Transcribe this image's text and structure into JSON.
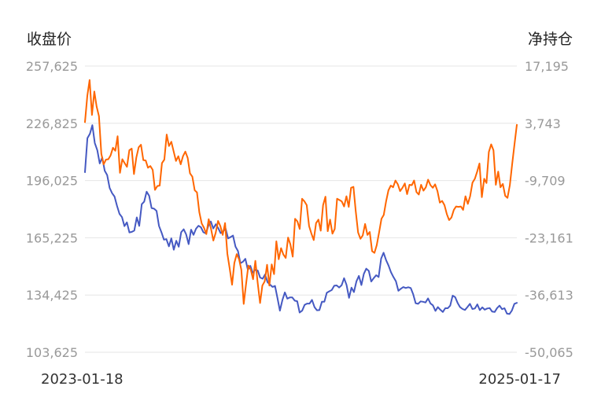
{
  "chart_data": {
    "type": "line",
    "left_axis_title": "收盘价",
    "right_axis_title": "净持仓",
    "left_ticks": [
      "257,625",
      "226,825",
      "196,025",
      "165,225",
      "134,425",
      "103,625"
    ],
    "right_ticks": [
      "17,195",
      "3,743",
      "-9,709",
      "-23,161",
      "-36,613",
      "-50,065"
    ],
    "left_range": [
      103625,
      257625
    ],
    "right_range": [
      -50065,
      17195
    ],
    "x_start_label": "2023-01-18",
    "x_end_label": "2025-01-17",
    "grid": true,
    "colors": {
      "close_price": "#4559c2",
      "net_position": "#ff6600"
    },
    "series": [
      {
        "key": "close_price",
        "axis": "left",
        "values": [
          200500,
          218800,
          221200,
          225800,
          216200,
          212300,
          205200,
          208400,
          201300,
          199000,
          192000,
          189200,
          187400,
          182300,
          178100,
          176300,
          171500,
          173500,
          168100,
          168400,
          169100,
          176200,
          171600,
          183300,
          184700,
          190000,
          187800,
          181200,
          180900,
          179700,
          171600,
          168100,
          164200,
          164500,
          160600,
          164900,
          158800,
          163600,
          160400,
          168200,
          169800,
          167100,
          161800,
          169600,
          166800,
          170100,
          171700,
          170900,
          168200,
          167600,
          171700,
          174000,
          170200,
          172500,
          170400,
          167700,
          168700,
          170100,
          164900,
          165600,
          166400,
          160400,
          158100,
          151500,
          152300,
          153900,
          148000,
          150100,
          146400,
          148000,
          147600,
          143800,
          143200,
          145500,
          141300,
          140000,
          138800,
          139300,
          132800,
          126000,
          131700,
          135800,
          132500,
          133100,
          133100,
          131400,
          131100,
          125000,
          126000,
          129100,
          129800,
          129800,
          131800,
          127900,
          126200,
          126300,
          130800,
          130800,
          135600,
          136400,
          137100,
          139400,
          139600,
          138500,
          139700,
          143500,
          139900,
          132900,
          138400,
          136000,
          141800,
          144700,
          139800,
          145800,
          148600,
          147400,
          141700,
          143500,
          145100,
          144100,
          154000,
          157200,
          153300,
          150300,
          146700,
          144100,
          141800,
          136700,
          137800,
          138700,
          138200,
          138600,
          138200,
          134900,
          130000,
          129700,
          131000,
          130800,
          130400,
          132600,
          129900,
          128900,
          125900,
          127900,
          126500,
          125300,
          127300,
          127300,
          128700,
          134100,
          133300,
          130200,
          127900,
          126900,
          126400,
          128000,
          129700,
          126900,
          127200,
          129400,
          126300,
          127800,
          126500,
          127200,
          127400,
          125500,
          125300,
          127400,
          128700,
          126800,
          127300,
          124400,
          124200,
          126100,
          129700,
          130200
        ]
      },
      {
        "key": "net_position",
        "axis": "right",
        "values": [
          4000,
          10200,
          13900,
          5700,
          11200,
          7700,
          5400,
          -3400,
          -5900,
          -4800,
          -4700,
          -3800,
          -2000,
          -2700,
          700,
          -7900,
          -4700,
          -5600,
          -6500,
          -2600,
          -2200,
          -8200,
          -4300,
          -1900,
          -1300,
          -4900,
          -5000,
          -6700,
          -6300,
          -7200,
          -11900,
          -11000,
          -10900,
          -5600,
          -4800,
          1100,
          -1600,
          -600,
          -2900,
          -5100,
          -4000,
          -5900,
          -4000,
          -2900,
          -4400,
          -8000,
          -8800,
          -12000,
          -12500,
          -17200,
          -19800,
          -20800,
          -22300,
          -18800,
          -21000,
          -23800,
          -22000,
          -19200,
          -20400,
          -22500,
          -19700,
          -26900,
          -30400,
          -34200,
          -29100,
          -27000,
          -28200,
          -30700,
          -38700,
          -34000,
          -29700,
          -30600,
          -32900,
          -28600,
          -33800,
          -38500,
          -34400,
          -33400,
          -29500,
          -34400,
          -29400,
          -31700,
          -24000,
          -28200,
          -25600,
          -27100,
          -27900,
          -23100,
          -24700,
          -27600,
          -18700,
          -19300,
          -21100,
          -14000,
          -14600,
          -15500,
          -20400,
          -22200,
          -23700,
          -19700,
          -18900,
          -21500,
          -15500,
          -13500,
          -21600,
          -18900,
          -22200,
          -21100,
          -14000,
          -14300,
          -14600,
          -15800,
          -13400,
          -15900,
          -11400,
          -11200,
          -16900,
          -21900,
          -23400,
          -22600,
          -19900,
          -22500,
          -21800,
          -26300,
          -26700,
          -24900,
          -21900,
          -18700,
          -17800,
          -14600,
          -12000,
          -10900,
          -11300,
          -9700,
          -10600,
          -12200,
          -11400,
          -10400,
          -12900,
          -10700,
          -10800,
          -9700,
          -12400,
          -13000,
          -10700,
          -12100,
          -11300,
          -9500,
          -10800,
          -11400,
          -10600,
          -12200,
          -14900,
          -14500,
          -15500,
          -17600,
          -19000,
          -18400,
          -16600,
          -15800,
          -15900,
          -15800,
          -16600,
          -13400,
          -15200,
          -13400,
          -10200,
          -9300,
          -7600,
          -5700,
          -13600,
          -9300,
          -10300,
          -3000,
          -1200,
          -2600,
          -10700,
          -7600,
          -11300,
          -10500,
          -13300,
          -13800,
          -10800,
          -5800,
          -1200,
          3400
        ]
      }
    ]
  }
}
